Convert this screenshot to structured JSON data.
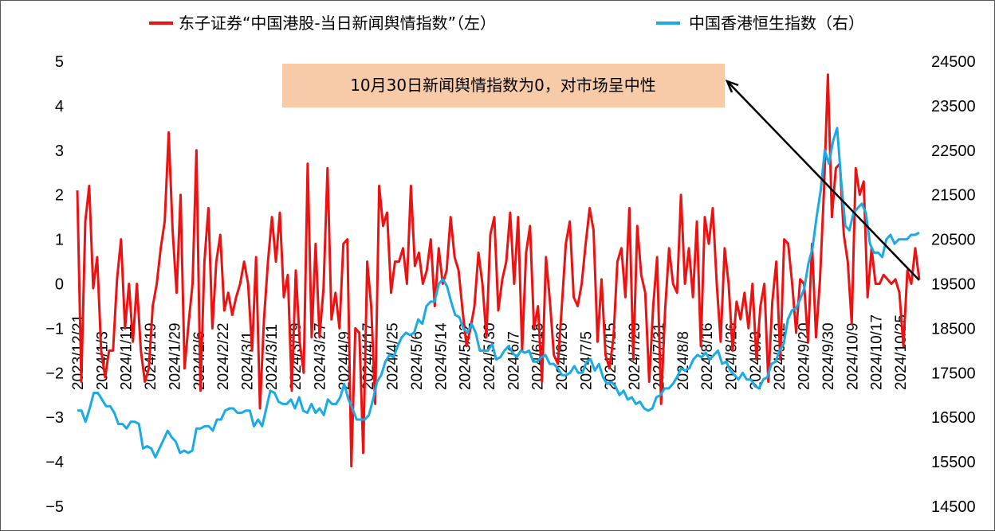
{
  "chart_data": {
    "type": "line",
    "legend": [
      {
        "label": "东子证券“中国港股-当日新闻舆情指数”（左）",
        "color": "#ee1111"
      },
      {
        "label": "中国香港恒生指数（右）",
        "color": "#1aaae6"
      }
    ],
    "annotation": "10月30日新闻舆情指数为0，对市场呈中性",
    "colors": {
      "sentiment": "#ee1111",
      "hsi": "#1aaae6",
      "annotation_bg": "#f8cba8",
      "arrow": "#000000"
    },
    "y_left": {
      "ylim": [
        -5,
        5
      ],
      "ticks": [
        "5",
        "4",
        "3",
        "2",
        "1",
        "0",
        "−1",
        "−2",
        "−3",
        "−4",
        "−5"
      ]
    },
    "y_right": {
      "ylim": [
        14500,
        24500
      ],
      "ticks": [
        "24500",
        "23500",
        "22500",
        "21500",
        "20500",
        "19500",
        "18500",
        "17500",
        "16500",
        "15500",
        "14500"
      ]
    },
    "x_tick_labels": [
      "2023/12/21",
      "2024/1/3",
      "2024/1/11",
      "2024/1/19",
      "2024/1/29",
      "2024/2/6",
      "2024/2/22",
      "2024/3/1",
      "2024/3/11",
      "2024/3/19",
      "2024/3/27",
      "2024/4/9",
      "2024/4/17",
      "2024/4/25",
      "2024/5/6",
      "2024/5/14",
      "2024/5/22",
      "2024/5/30",
      "2024/6/7",
      "2024/6/18",
      "2024/6/26",
      "2024/7/5",
      "2024/7/15",
      "2024/7/23",
      "2024/7/31",
      "2024/8/8",
      "2024/8/16",
      "2024/8/26",
      "2024/9/3",
      "2024/9/12",
      "2024/9/20",
      "2024/9/30",
      "2024/10/9",
      "2024/10/17",
      "2024/10/25"
    ],
    "series": [
      {
        "name": "东子证券“中国港股-当日新闻舆情指数”（左）",
        "axis": "left",
        "values": [
          2.1,
          -2.2,
          1.4,
          2.2,
          -0.1,
          0.6,
          -1.5,
          -2.1,
          -1.5,
          -1.5,
          0.1,
          1.0,
          -1.0,
          0.0,
          -1.3,
          0.0,
          -1.5,
          -2.2,
          -1.9,
          -0.5,
          0.0,
          0.8,
          1.4,
          3.4,
          1.2,
          -0.2,
          2.0,
          -1.9,
          -0.9,
          0.0,
          3.0,
          -2.4,
          0.5,
          1.7,
          -1.0,
          0.5,
          1.1,
          -0.6,
          -0.2,
          -0.7,
          -0.3,
          0.0,
          0.5,
          0.0,
          -1.5,
          0.6,
          -2.8,
          -0.8,
          0.5,
          1.5,
          0.5,
          1.6,
          -0.3,
          0.2,
          -2.4,
          0.3,
          -1.3,
          -2.0,
          2.7,
          -1.2,
          0.9,
          -1.2,
          -0.1,
          2.6,
          -0.8,
          -0.2,
          -1.0,
          0.9,
          1.0,
          -4.1,
          -1.0,
          -1.1,
          -3.8,
          0.5,
          -0.5,
          -2.7,
          2.2,
          1.3,
          1.6,
          -0.2,
          0.5,
          0.5,
          0.8,
          0.0,
          2.2,
          0.4,
          0.7,
          0.0,
          0.3,
          1.0,
          -0.5,
          0.8,
          0.0,
          0.3,
          1.5,
          0.6,
          0.3,
          -0.6,
          -1.4,
          -1.0,
          -0.5,
          0.7,
          0.0,
          -1.2,
          1.1,
          1.5,
          -0.6,
          0.1,
          0.5,
          1.6,
          0.0,
          1.5,
          -1.5,
          0.7,
          1.3,
          -1.0,
          -0.5,
          -2.2,
          0.6,
          -0.4,
          -1.6,
          -1.8,
          -0.5,
          0.9,
          1.4,
          -0.3,
          -0.5,
          0.0,
          0.9,
          1.7,
          1.2,
          -1.3,
          0.1,
          -1.6,
          -1.9,
          -1.2,
          0.5,
          0.8,
          -0.3,
          1.7,
          -1.7,
          1.3,
          0.2,
          -0.2,
          -2.2,
          -0.5,
          0.6,
          -2.7,
          -0.6,
          0.8,
          0.0,
          -0.2,
          2.0,
          0.0,
          0.8,
          -0.3,
          1.4,
          -1.4,
          1.5,
          0.9,
          1.7,
          0.0,
          -1.3,
          0.8,
          0.0,
          -1.5,
          -0.4,
          -0.8,
          -0.2,
          -1.0,
          0.0,
          -1.7,
          -0.5,
          0.0,
          -2.2,
          -0.4,
          0.5,
          -1.7,
          1.0,
          0.9,
          0.0,
          -1.1,
          0.1,
          0.0,
          -1.3,
          0.9,
          -1.2,
          0.1,
          2.1,
          4.7,
          1.5,
          2.6,
          2.7,
          1.1,
          0.5,
          -0.9,
          2.6,
          2.0,
          2.3,
          -0.3,
          0.8,
          0.0,
          0.0,
          0.2,
          0.1,
          0.0,
          0.1,
          -0.2,
          -1.4,
          0.3,
          0.0,
          0.8,
          0.1
        ]
      },
      {
        "name": "中国香港恒生指数（右）",
        "axis": "right",
        "values": [
          16650,
          16650,
          16400,
          16700,
          17050,
          17050,
          16900,
          16750,
          16750,
          16600,
          16350,
          16350,
          16250,
          16400,
          16400,
          16350,
          15800,
          15850,
          15800,
          15600,
          15800,
          16000,
          16200,
          16050,
          15950,
          15700,
          15750,
          15700,
          15750,
          16250,
          16250,
          16300,
          16300,
          16200,
          16450,
          16450,
          16650,
          16700,
          16700,
          16600,
          16600,
          16650,
          16650,
          16300,
          16450,
          16300,
          16700,
          17100,
          17050,
          16850,
          16800,
          16800,
          16900,
          16700,
          16950,
          16650,
          16600,
          16800,
          16600,
          16700,
          16550,
          16900,
          16800,
          16800,
          16950,
          17250,
          16900,
          16700,
          16450,
          16450,
          16450,
          16550,
          16900,
          17300,
          17450,
          17750,
          17900,
          17850,
          18100,
          18300,
          18400,
          18350,
          18400,
          18700,
          18600,
          19000,
          19100,
          19100,
          19500,
          19600,
          19450,
          19100,
          18800,
          18750,
          18500,
          18400,
          18600,
          18400,
          18000,
          18000,
          18000,
          18150,
          17800,
          17850,
          18000,
          18100,
          17950,
          17850,
          18000,
          17950,
          18000,
          17750,
          17750,
          17850,
          17900,
          17700,
          17700,
          17600,
          17450,
          17450,
          17500,
          17650,
          17500,
          17500,
          17750,
          17800,
          17550,
          17700,
          17400,
          17250,
          17300,
          17200,
          17000,
          17100,
          16900,
          16950,
          16800,
          16850,
          16700,
          16650,
          16700,
          16950,
          17000,
          17150,
          17150,
          17250,
          17400,
          17600,
          17550,
          17600,
          17800,
          17900,
          17850,
          17950,
          17800,
          17900,
          18000,
          17700,
          17750,
          17550,
          17450,
          17350,
          17500,
          17350,
          17350,
          17200,
          17150,
          17350,
          17400,
          17700,
          17750,
          18000,
          18150,
          18700,
          18900,
          18950,
          19150,
          19400,
          19950,
          20300,
          21000,
          21600,
          22500,
          22200,
          22700,
          23000,
          21800,
          20800,
          20700,
          21100,
          21200,
          21300,
          21100,
          20400,
          20200,
          20200,
          20100,
          20500,
          20600,
          20400,
          20500,
          20500,
          20500,
          20600,
          20600,
          20650
        ]
      }
    ]
  }
}
